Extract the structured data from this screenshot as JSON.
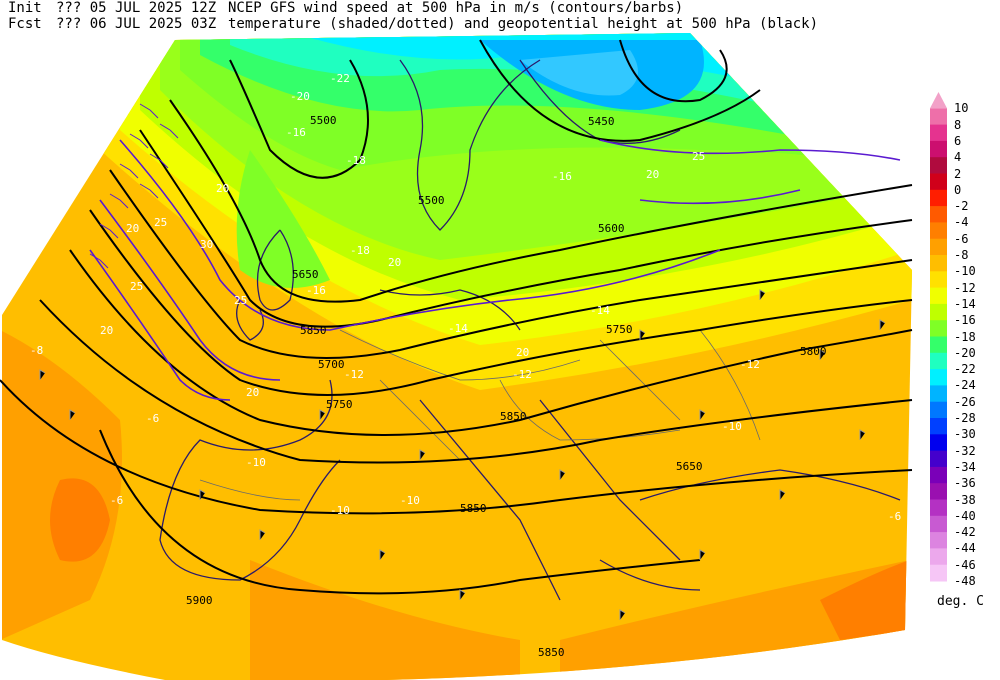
{
  "header": {
    "init_label": "Init",
    "init_run": "??? 05 JUL 2025 12Z",
    "fcst_label": "Fcst",
    "fcst_valid": "??? 06 JUL 2025 03Z",
    "title_line1": "NCEP GFS wind speed at 500 hPa in m/s (contours/barbs)",
    "title_line2": "temperature (shaded/dotted) and geopotential height at 500 hPa (black)"
  },
  "legend": {
    "units": "deg. C",
    "entries": [
      {
        "label": "10",
        "color": "#f2a1c8"
      },
      {
        "label": "8",
        "color": "#ee6fa9"
      },
      {
        "label": "6",
        "color": "#e5338f"
      },
      {
        "label": "4",
        "color": "#cc0f6f"
      },
      {
        "label": "2",
        "color": "#b00b3e"
      },
      {
        "label": "0",
        "color": "#d0001a"
      },
      {
        "label": "-2",
        "color": "#ff1e00"
      },
      {
        "label": "-4",
        "color": "#ff5a00"
      },
      {
        "label": "-6",
        "color": "#ff7f00"
      },
      {
        "label": "-8",
        "color": "#ffa000"
      },
      {
        "label": "-10",
        "color": "#ffbe00"
      },
      {
        "label": "-12",
        "color": "#ffe100"
      },
      {
        "label": "-14",
        "color": "#f0ff00"
      },
      {
        "label": "-16",
        "color": "#bfff00"
      },
      {
        "label": "-18",
        "color": "#7fff26"
      },
      {
        "label": "-20",
        "color": "#34ff6a"
      },
      {
        "label": "-22",
        "color": "#1fffc0"
      },
      {
        "label": "-24",
        "color": "#00f0ff"
      },
      {
        "label": "-26",
        "color": "#00b4ff"
      },
      {
        "label": "-28",
        "color": "#0078ff"
      },
      {
        "label": "-30",
        "color": "#0040ff"
      },
      {
        "label": "-32",
        "color": "#0000ee"
      },
      {
        "label": "-34",
        "color": "#4400cc"
      },
      {
        "label": "-36",
        "color": "#7a00b8"
      },
      {
        "label": "-38",
        "color": "#9a10b0"
      },
      {
        "label": "-40",
        "color": "#b431c3"
      },
      {
        "label": "-42",
        "color": "#c85ad2"
      },
      {
        "label": "-44",
        "color": "#dc84e0"
      },
      {
        "label": "-46",
        "color": "#eca8ec"
      },
      {
        "label": "-48",
        "color": "#f6c6f6"
      }
    ]
  },
  "map_labels": {
    "height_5500": "5500",
    "height_5500b": "5500",
    "height_5450": "5450",
    "height_5600": "5600",
    "height_5650": "5650",
    "height_5700": "5700",
    "height_5750": "5750",
    "height_5750b": "5750",
    "height_5800": "5800",
    "height_5850": "5850",
    "height_5850b": "5850",
    "height_5850c": "5850",
    "height_5850d": "5850",
    "height_5900": "5900",
    "height_5650b": "5650",
    "temp_m22": "-22",
    "temp_m20": "-20",
    "temp_m18a": "-18",
    "temp_m18b": "-18",
    "temp_m16a": "-16",
    "temp_m16b": "-16",
    "temp_m16c": "-16",
    "temp_m14a": "-14",
    "temp_m14b": "-14",
    "temp_m12a": "-12",
    "temp_m12b": "-12",
    "temp_m12c": "-12",
    "temp_m10a": "-10",
    "temp_m10b": "-10",
    "temp_m10c": "-10",
    "temp_m10d": "-10",
    "temp_m8": "-8",
    "temp_m6a": "-6",
    "temp_m6b": "-6",
    "temp_m6c": "-6",
    "wind_20a": "20",
    "wind_20b": "20",
    "wind_20c": "20",
    "wind_20d": "20",
    "wind_20e": "20",
    "wind_20f": "20",
    "wind_20g": "20",
    "wind_25a": "25",
    "wind_25b": "25",
    "wind_25c": "25",
    "wind_25d": "25",
    "wind_30": "30"
  }
}
